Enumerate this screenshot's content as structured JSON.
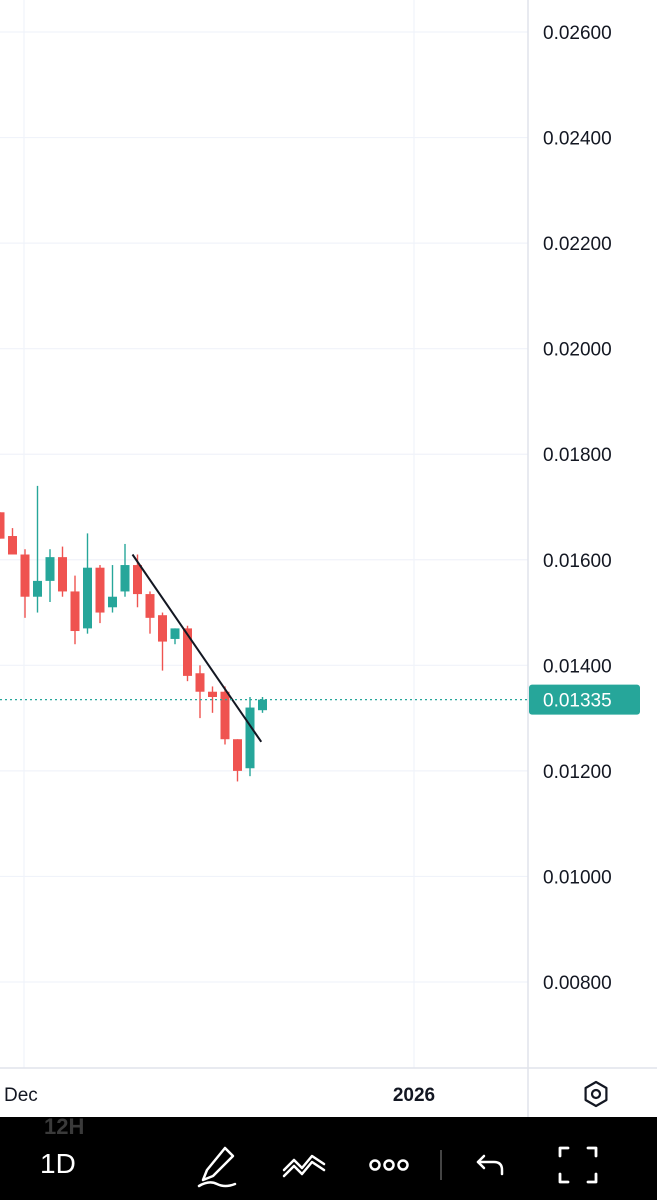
{
  "chart_data": {
    "type": "candlestick",
    "y_axis": {
      "position": "right",
      "ticks": [
        "0.02600",
        "0.02400",
        "0.02200",
        "0.02000",
        "0.01800",
        "0.01600",
        "0.01400",
        "0.01200",
        "0.01000",
        "0.00800"
      ],
      "range": [
        0.007,
        0.0271
      ]
    },
    "x_axis": {
      "ticks": [
        "Dec",
        "2026"
      ]
    },
    "grid": true,
    "current_price": {
      "label": "0.01335",
      "value": 0.01335,
      "color": "#26a69a"
    },
    "colors": {
      "up": "#26a69a",
      "down": "#ef5350",
      "grid": "#f0f3fa",
      "axis_text": "#131722"
    },
    "candles": [
      {
        "o": 0.0169,
        "h": 0.0169,
        "l": 0.0164,
        "c": 0.0164
      },
      {
        "o": 0.01645,
        "h": 0.0166,
        "l": 0.0161,
        "c": 0.0161
      },
      {
        "o": 0.0161,
        "h": 0.0162,
        "l": 0.0149,
        "c": 0.0153
      },
      {
        "o": 0.0153,
        "h": 0.0174,
        "l": 0.015,
        "c": 0.0156
      },
      {
        "o": 0.0156,
        "h": 0.0162,
        "l": 0.0152,
        "c": 0.01605
      },
      {
        "o": 0.01605,
        "h": 0.01625,
        "l": 0.0153,
        "c": 0.0154
      },
      {
        "o": 0.0154,
        "h": 0.0157,
        "l": 0.0144,
        "c": 0.01465
      },
      {
        "o": 0.0147,
        "h": 0.0165,
        "l": 0.0146,
        "c": 0.01585
      },
      {
        "o": 0.01585,
        "h": 0.0159,
        "l": 0.0148,
        "c": 0.015
      },
      {
        "o": 0.0151,
        "h": 0.0159,
        "l": 0.015,
        "c": 0.0153
      },
      {
        "o": 0.0154,
        "h": 0.0163,
        "l": 0.0153,
        "c": 0.0159
      },
      {
        "o": 0.0159,
        "h": 0.0161,
        "l": 0.0151,
        "c": 0.01535
      },
      {
        "o": 0.01535,
        "h": 0.0154,
        "l": 0.0146,
        "c": 0.0149
      },
      {
        "o": 0.01495,
        "h": 0.015,
        "l": 0.0139,
        "c": 0.01445
      },
      {
        "o": 0.0145,
        "h": 0.0147,
        "l": 0.0144,
        "c": 0.0147
      },
      {
        "o": 0.0147,
        "h": 0.01475,
        "l": 0.0137,
        "c": 0.0138
      },
      {
        "o": 0.01385,
        "h": 0.014,
        "l": 0.013,
        "c": 0.0135
      },
      {
        "o": 0.0135,
        "h": 0.0136,
        "l": 0.0131,
        "c": 0.0134
      },
      {
        "o": 0.0135,
        "h": 0.0136,
        "l": 0.0125,
        "c": 0.0126
      },
      {
        "o": 0.0126,
        "h": 0.0126,
        "l": 0.0118,
        "c": 0.012
      },
      {
        "o": 0.01205,
        "h": 0.0134,
        "l": 0.0119,
        "c": 0.0132
      },
      {
        "o": 0.01315,
        "h": 0.0134,
        "l": 0.0131,
        "c": 0.01335
      }
    ],
    "trendline": {
      "from": {
        "candle": 10.6,
        "price": 0.0161
      },
      "to": {
        "candle": 20.9,
        "price": 0.01255
      }
    }
  },
  "toolbar": {
    "interval": "1D",
    "sub_interval": "12H",
    "icons": [
      "drawing-pen-icon",
      "indicators-icon",
      "more-icon",
      "undo-icon",
      "fullscreen-icon"
    ]
  },
  "corner_icon": "settings-hexagon-icon"
}
